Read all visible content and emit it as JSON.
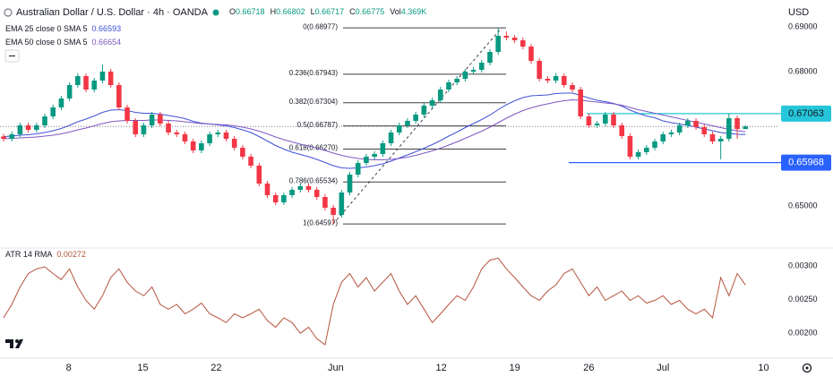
{
  "header": {
    "symbol": "Australian Dollar / U.S. Dollar · 4h · OANDA",
    "ohlc_letters": [
      "O",
      "H",
      "L",
      "C"
    ],
    "volume_label": "Vol",
    "volume": "4.369K",
    "currency": "USD"
  },
  "chart_data": [
    {
      "type": "candlestick",
      "up_color": "#089981",
      "down_color": "#f23645",
      "xlim": [
        0,
        94.1
      ],
      "xticks": [
        {
          "value": 7.9,
          "label": "8"
        },
        {
          "value": 16.9,
          "label": "15"
        },
        {
          "value": 25.8,
          "label": "22"
        },
        {
          "value": 40.3,
          "label": "Jun"
        },
        {
          "value": 53.1,
          "label": "12"
        },
        {
          "value": 62,
          "label": "19"
        },
        {
          "value": 71,
          "label": "26"
        },
        {
          "value": 80,
          "label": "Jul"
        },
        {
          "value": 92.2,
          "label": "10"
        }
      ],
      "ylim": [
        0.641,
        0.696
      ],
      "yticks": [
        {
          "value": 0.69,
          "label": "0.69000"
        },
        {
          "value": 0.68,
          "label": "0.68000"
        },
        {
          "value": 0.65,
          "label": "0.65000"
        }
      ],
      "open": [
        0.6655,
        0.665,
        0.666,
        0.668,
        0.667,
        0.668,
        0.67,
        0.672,
        0.674,
        0.677,
        0.679,
        0.676,
        0.678,
        0.68,
        0.677,
        0.672,
        0.669,
        0.666,
        0.668,
        0.6704,
        0.6684,
        0.6664,
        0.666,
        0.6644,
        0.6624,
        0.664,
        0.666,
        0.6664,
        0.665,
        0.663,
        0.661,
        0.659,
        0.655,
        0.6524,
        0.6508,
        0.6524,
        0.6536,
        0.6544,
        0.6536,
        0.652,
        0.6496,
        0.648,
        0.653,
        0.657,
        0.6596,
        0.661,
        0.6616,
        0.664,
        0.6664,
        0.668,
        0.669,
        0.6704,
        0.6724,
        0.6736,
        0.676,
        0.6776,
        0.6784,
        0.68,
        0.6804,
        0.682,
        0.6844,
        0.688,
        0.6876,
        0.687,
        0.6856,
        0.6824,
        0.6784,
        0.678,
        0.679,
        0.677,
        0.676,
        0.67,
        0.668,
        0.6684,
        0.6704,
        0.668,
        0.6656,
        0.661,
        0.662,
        0.663,
        0.6644,
        0.666,
        0.6664,
        0.668,
        0.669,
        0.6676,
        0.666,
        0.6644,
        0.665,
        0.6696,
        0.66718
      ],
      "high": [
        0.6661,
        0.6666,
        0.6686,
        0.6686,
        0.6686,
        0.6706,
        0.6726,
        0.6746,
        0.6776,
        0.6796,
        0.6796,
        0.6786,
        0.6816,
        0.6806,
        0.6776,
        0.6726,
        0.6696,
        0.6686,
        0.671,
        0.671,
        0.669,
        0.667,
        0.6666,
        0.665,
        0.6646,
        0.6666,
        0.667,
        0.667,
        0.6656,
        0.6636,
        0.6616,
        0.6596,
        0.6556,
        0.653,
        0.653,
        0.6542,
        0.655,
        0.655,
        0.6542,
        0.6526,
        0.6502,
        0.6536,
        0.6576,
        0.6602,
        0.6616,
        0.6622,
        0.6646,
        0.667,
        0.6686,
        0.6696,
        0.671,
        0.673,
        0.6742,
        0.6766,
        0.6782,
        0.679,
        0.6806,
        0.681,
        0.6826,
        0.685,
        0.6898,
        0.689,
        0.6882,
        0.6876,
        0.6862,
        0.683,
        0.679,
        0.6796,
        0.6796,
        0.6776,
        0.6766,
        0.6706,
        0.669,
        0.671,
        0.671,
        0.6686,
        0.6662,
        0.6626,
        0.6636,
        0.665,
        0.6666,
        0.667,
        0.6686,
        0.6696,
        0.6696,
        0.6682,
        0.6666,
        0.6656,
        0.6706,
        0.6702,
        0.66802
      ],
      "low": [
        0.6644,
        0.6644,
        0.6654,
        0.6664,
        0.6664,
        0.6674,
        0.6694,
        0.6714,
        0.6734,
        0.6764,
        0.6754,
        0.6754,
        0.6774,
        0.6764,
        0.6714,
        0.6684,
        0.6654,
        0.6654,
        0.6674,
        0.6678,
        0.6658,
        0.6654,
        0.6638,
        0.6618,
        0.6618,
        0.6634,
        0.6654,
        0.6644,
        0.6624,
        0.6604,
        0.6584,
        0.6544,
        0.6518,
        0.6502,
        0.6502,
        0.6518,
        0.653,
        0.653,
        0.6514,
        0.649,
        0.646,
        0.6474,
        0.6524,
        0.6564,
        0.659,
        0.6604,
        0.661,
        0.6634,
        0.6658,
        0.6674,
        0.6684,
        0.6698,
        0.6718,
        0.673,
        0.6754,
        0.677,
        0.6778,
        0.6794,
        0.6798,
        0.6814,
        0.6838,
        0.687,
        0.6864,
        0.685,
        0.6818,
        0.6778,
        0.6774,
        0.6774,
        0.6764,
        0.6754,
        0.6694,
        0.6674,
        0.6674,
        0.6678,
        0.6674,
        0.665,
        0.6604,
        0.6604,
        0.6614,
        0.6624,
        0.6638,
        0.6654,
        0.6658,
        0.6674,
        0.667,
        0.6654,
        0.6638,
        0.6604,
        0.6644,
        0.665,
        0.66717
      ],
      "close": [
        0.665,
        0.666,
        0.668,
        0.667,
        0.668,
        0.67,
        0.672,
        0.674,
        0.677,
        0.679,
        0.676,
        0.678,
        0.68,
        0.677,
        0.672,
        0.669,
        0.666,
        0.668,
        0.6704,
        0.6684,
        0.6664,
        0.666,
        0.6644,
        0.6624,
        0.664,
        0.666,
        0.6664,
        0.665,
        0.663,
        0.661,
        0.659,
        0.655,
        0.6524,
        0.6508,
        0.6524,
        0.6536,
        0.6544,
        0.6536,
        0.652,
        0.6496,
        0.648,
        0.653,
        0.657,
        0.6596,
        0.661,
        0.6616,
        0.664,
        0.6664,
        0.668,
        0.669,
        0.6704,
        0.6724,
        0.6736,
        0.676,
        0.6776,
        0.6784,
        0.68,
        0.6804,
        0.682,
        0.6844,
        0.688,
        0.6876,
        0.687,
        0.6856,
        0.6824,
        0.6784,
        0.678,
        0.679,
        0.677,
        0.676,
        0.67,
        0.668,
        0.6684,
        0.6704,
        0.668,
        0.6656,
        0.661,
        0.662,
        0.663,
        0.6644,
        0.666,
        0.6664,
        0.668,
        0.669,
        0.6676,
        0.666,
        0.6644,
        0.665,
        0.6696,
        0.66718,
        0.66775
      ],
      "overlays": [
        {
          "name": "EMA 25 close 0 SMA 5",
          "color": "#3f51d6",
          "values": [
            0.6655,
            0.6656,
            0.6658,
            0.6659,
            0.6661,
            0.6664,
            0.6668,
            0.6673,
            0.668,
            0.6688,
            0.6694,
            0.6701,
            0.6709,
            0.6714,
            0.6715,
            0.6713,
            0.6709,
            0.6707,
            0.6707,
            0.6705,
            0.6702,
            0.6699,
            0.6695,
            0.6689,
            0.6685,
            0.6683,
            0.6681,
            0.6679,
            0.6675,
            0.667,
            0.6664,
            0.6655,
            0.6645,
            0.6635,
            0.6627,
            0.662,
            0.6615,
            0.661,
            0.6604,
            0.6597,
            0.659,
            0.6585,
            0.6584,
            0.6585,
            0.6587,
            0.659,
            0.6594,
            0.66,
            0.6607,
            0.6614,
            0.6621,
            0.6629,
            0.6637,
            0.6646,
            0.6656,
            0.6665,
            0.6675,
            0.6684,
            0.6693,
            0.6703,
            0.6715,
            0.6726,
            0.6735,
            0.6742,
            0.6746,
            0.6747,
            0.6748,
            0.6751,
            0.6752,
            0.6752,
            0.6747,
            0.6741,
            0.6736,
            0.6733,
            0.6729,
            0.6723,
            0.6714,
            0.6707,
            0.6701,
            0.6697,
            0.669,
            0.6686,
            0.6683,
            0.668,
            0.6676,
            0.6672,
            0.6668,
            0.6664,
            0.6662,
            0.666,
            0.66593
          ]
        },
        {
          "name": "EMA 50 close 0 SMA 5",
          "color": "#7e57c2",
          "values": [
            0.665,
            0.6651,
            0.6652,
            0.6653,
            0.6654,
            0.6656,
            0.6658,
            0.6661,
            0.6665,
            0.667,
            0.6674,
            0.6679,
            0.6684,
            0.6688,
            0.669,
            0.6691,
            0.6691,
            0.6691,
            0.6692,
            0.6692,
            0.6691,
            0.669,
            0.6688,
            0.6686,
            0.6684,
            0.6683,
            0.6682,
            0.6681,
            0.6679,
            0.6676,
            0.6672,
            0.6667,
            0.6661,
            0.6654,
            0.6648,
            0.6643,
            0.6638,
            0.6634,
            0.6629,
            0.6624,
            0.6618,
            0.6613,
            0.6609,
            0.6606,
            0.6604,
            0.6603,
            0.6603,
            0.6604,
            0.6606,
            0.6609,
            0.6613,
            0.6618,
            0.6623,
            0.6629,
            0.6636,
            0.6643,
            0.6651,
            0.6659,
            0.6667,
            0.6676,
            0.6686,
            0.6696,
            0.6705,
            0.6713,
            0.6719,
            0.6724,
            0.6728,
            0.6732,
            0.6735,
            0.6737,
            0.6736,
            0.6734,
            0.6732,
            0.673,
            0.6728,
            0.6725,
            0.672,
            0.6715,
            0.6711,
            0.6707,
            0.6703,
            0.6699,
            0.6695,
            0.6691,
            0.6687,
            0.6683,
            0.6679,
            0.6675,
            0.6671,
            0.6668,
            0.66654
          ]
        }
      ],
      "fib_levels": [
        {
          "value": 0.68977,
          "label": "0(0.68977)"
        },
        {
          "value": 0.67943,
          "label": "0.236(0.67943)"
        },
        {
          "value": 0.67304,
          "label": "0.382(0.67304)"
        },
        {
          "value": 0.66787,
          "label": "0.5(0.66787)"
        },
        {
          "value": 0.6627,
          "label": "0.618(0.66270)"
        },
        {
          "value": 0.65534,
          "label": "0.786(0.65534)"
        },
        {
          "value": 0.64597,
          "label": "1(0.64597)"
        }
      ],
      "levels": [
        {
          "value": 0.67063,
          "color": "#26c6da",
          "label_text_color": "#131722"
        },
        {
          "value": 0.65968,
          "color": "#2962ff",
          "label_text_color": "#ffffff"
        }
      ]
    },
    {
      "type": "line",
      "name": "ATR 14 RMA",
      "color": "#b5533c",
      "ylim": [
        0.00163,
        0.00323
      ],
      "yticks": [
        {
          "value": 0.003,
          "label": "0.00300"
        },
        {
          "value": 0.0025,
          "label": "0.00250"
        },
        {
          "value": 0.002,
          "label": "0.00200"
        }
      ],
      "values": [
        0.00223,
        0.00243,
        0.00269,
        0.00289,
        0.00296,
        0.00299,
        0.00289,
        0.0028,
        0.00296,
        0.00269,
        0.00249,
        0.00236,
        0.00256,
        0.00283,
        0.00296,
        0.00276,
        0.00263,
        0.00256,
        0.00269,
        0.00243,
        0.00236,
        0.00243,
        0.00229,
        0.00236,
        0.00245,
        0.00229,
        0.00223,
        0.00216,
        0.00229,
        0.00223,
        0.00229,
        0.00236,
        0.00219,
        0.00209,
        0.00223,
        0.00216,
        0.002,
        0.00209,
        0.00192,
        0.00183,
        0.00243,
        0.00276,
        0.00289,
        0.00269,
        0.00283,
        0.00263,
        0.00276,
        0.00289,
        0.00263,
        0.00243,
        0.00256,
        0.00236,
        0.00216,
        0.00229,
        0.00243,
        0.00256,
        0.00249,
        0.00269,
        0.00296,
        0.00309,
        0.00312,
        0.00296,
        0.00283,
        0.00269,
        0.00256,
        0.00249,
        0.00263,
        0.00272,
        0.00289,
        0.00296,
        0.00276,
        0.00256,
        0.00269,
        0.00249,
        0.00256,
        0.00263,
        0.00249,
        0.00256,
        0.00245,
        0.00249,
        0.00256,
        0.00243,
        0.00249,
        0.00236,
        0.00229,
        0.00236,
        0.00223,
        0.00283,
        0.00256,
        0.00289,
        0.00272
      ]
    }
  ]
}
